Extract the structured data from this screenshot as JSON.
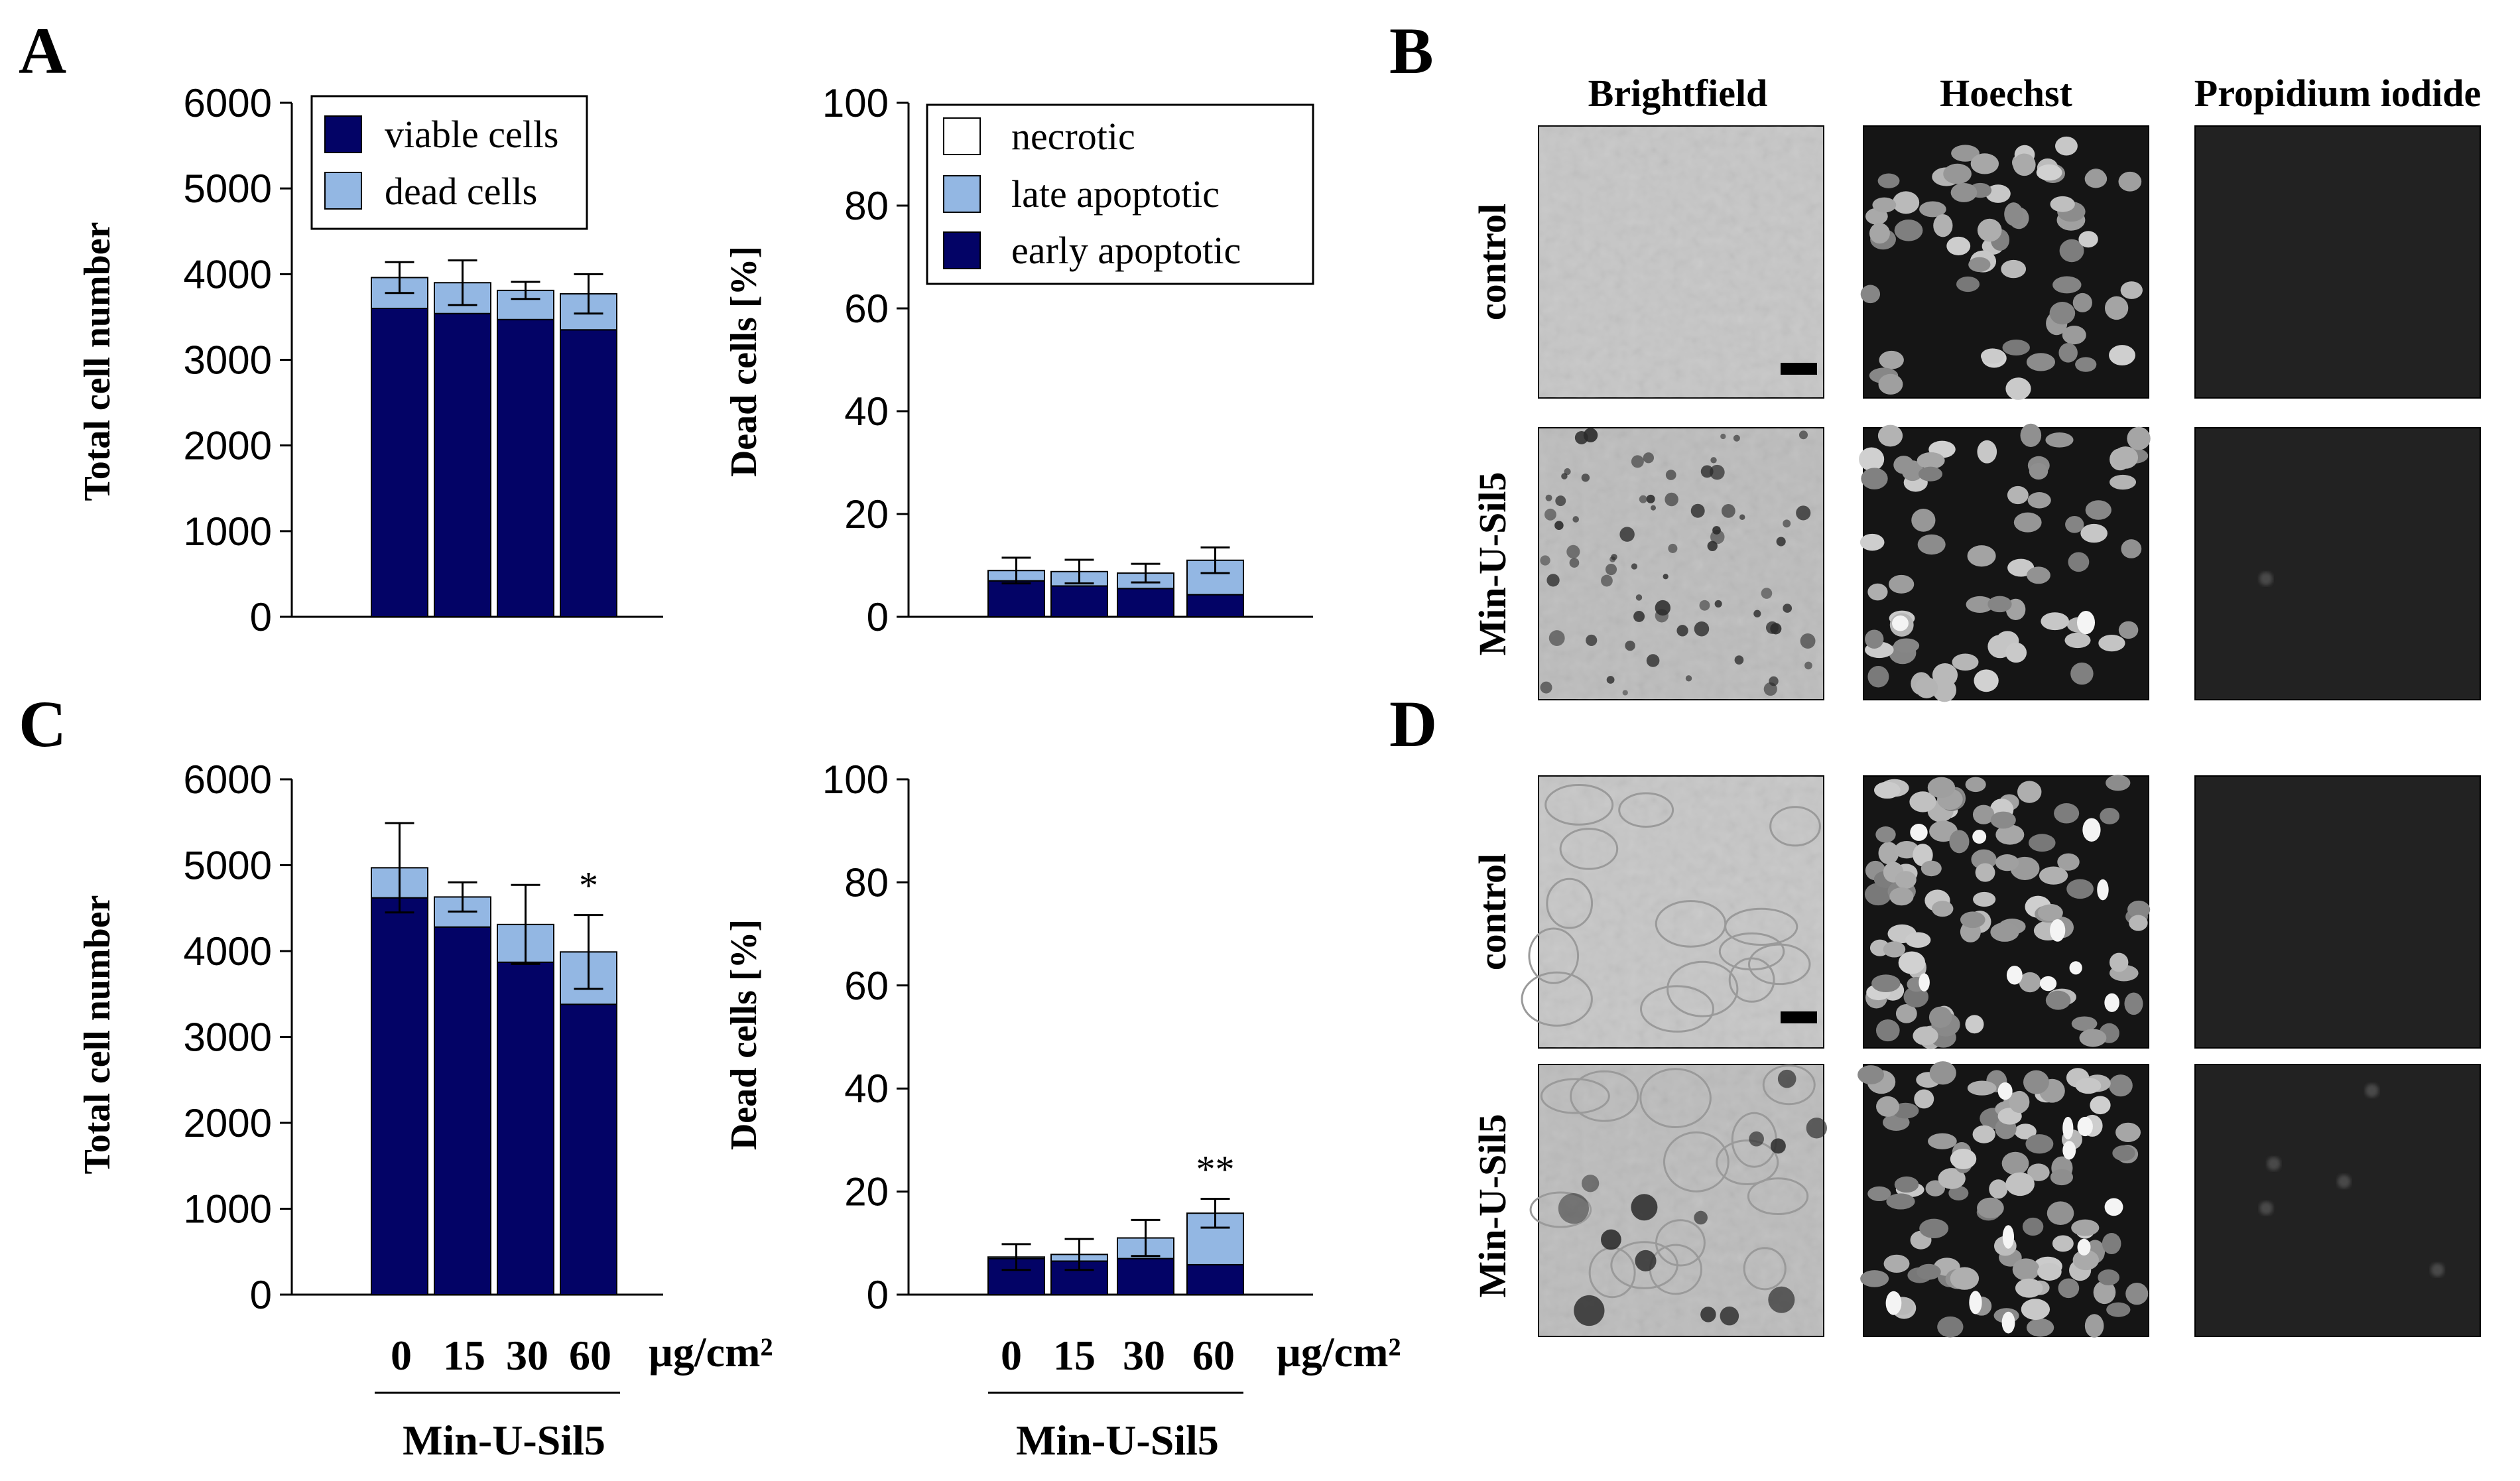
{
  "colors": {
    "viable": "#030366",
    "dead": "#93b7e3",
    "necrotic": "#ffffff",
    "late": "#93b7e3",
    "early": "#030366"
  },
  "chart_data": [
    {
      "id": "A-left",
      "panel": "A",
      "type": "bar",
      "stacked": true,
      "ylabel": "Total cell number",
      "ylim": [
        0,
        6000
      ],
      "yticks": [
        "6000",
        "5000",
        "4000",
        "3000",
        "2000",
        "1000",
        "0"
      ],
      "categories": [
        "0",
        "15",
        "30",
        "60"
      ],
      "series": [
        {
          "name": "viable cells",
          "values": [
            3600,
            3540,
            3470,
            3350
          ]
        },
        {
          "name": "dead cells",
          "values": [
            360,
            360,
            340,
            420
          ]
        }
      ],
      "error": [
        180,
        260,
        100,
        230
      ],
      "legend": [
        "viable cells",
        "dead cells"
      ],
      "legend_position": "top-right"
    },
    {
      "id": "A-right",
      "panel": "A",
      "type": "bar",
      "stacked": true,
      "ylabel": "Dead cells [%]",
      "ylim": [
        0,
        100
      ],
      "yticks": [
        "100",
        "80",
        "60",
        "40",
        "20",
        "0"
      ],
      "categories": [
        "0",
        "15",
        "30",
        "60"
      ],
      "series": [
        {
          "name": "early apoptotic",
          "values": [
            7,
            6,
            5.5,
            4.3
          ]
        },
        {
          "name": "late apoptotic",
          "values": [
            2,
            2.8,
            3,
            6.7
          ]
        },
        {
          "name": "necrotic",
          "values": [
            0,
            0,
            0,
            0
          ]
        }
      ],
      "error": [
        2.5,
        2.3,
        1.8,
        2.5
      ],
      "legend": [
        "necrotic",
        "late apoptotic",
        "early apoptotic"
      ],
      "legend_position": "top-right"
    },
    {
      "id": "C-left",
      "panel": "C",
      "type": "bar",
      "stacked": true,
      "ylabel": "Total cell number",
      "ylim": [
        0,
        6000
      ],
      "yticks": [
        "6000",
        "5000",
        "4000",
        "3000",
        "2000",
        "1000",
        "0"
      ],
      "categories": [
        "0",
        "15",
        "30",
        "60"
      ],
      "series": [
        {
          "name": "viable cells",
          "values": [
            4620,
            4280,
            3870,
            3380
          ]
        },
        {
          "name": "dead cells",
          "values": [
            350,
            350,
            440,
            610
          ]
        }
      ],
      "error": [
        520,
        170,
        460,
        430
      ],
      "annotations": [
        {
          "category": "60",
          "text": "*"
        }
      ],
      "xunit": "µg/cm²",
      "group_label": "Min-U-Sil5"
    },
    {
      "id": "C-right",
      "panel": "C",
      "type": "bar",
      "stacked": true,
      "ylabel": "Dead cells [%]",
      "ylim": [
        0,
        100
      ],
      "yticks": [
        "100",
        "80",
        "60",
        "40",
        "20",
        "0"
      ],
      "categories": [
        "0",
        "15",
        "30",
        "60"
      ],
      "series": [
        {
          "name": "early apoptotic",
          "values": [
            7,
            6.5,
            7,
            5.8
          ]
        },
        {
          "name": "late apoptotic",
          "values": [
            0.3,
            1.3,
            4,
            10
          ]
        },
        {
          "name": "necrotic",
          "values": [
            0,
            0,
            0,
            0
          ]
        }
      ],
      "error": [
        2.5,
        3,
        3.5,
        2.8
      ],
      "annotations": [
        {
          "category": "60",
          "text": "**"
        }
      ],
      "xunit": "µg/cm²",
      "group_label": "Min-U-Sil5"
    }
  ],
  "micrographs": {
    "columns": [
      "Brightfield",
      "Hoechst",
      "Propidium iodide"
    ],
    "rows": [
      "control",
      "Min-U-Sil5"
    ],
    "panels": [
      "B",
      "D"
    ]
  },
  "panel_letters": {
    "a": "A",
    "b": "B",
    "c": "C",
    "d": "D"
  }
}
